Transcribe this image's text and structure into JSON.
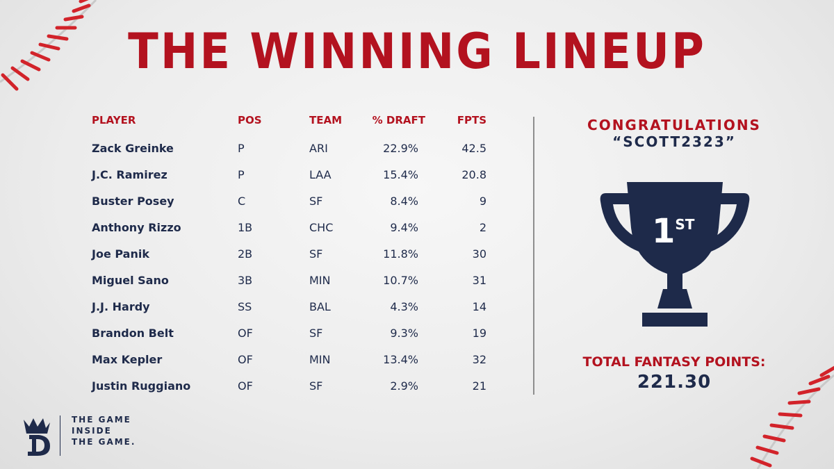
{
  "title": "THE WINNING LINEUP",
  "table": {
    "headers": {
      "player": "PLAYER",
      "pos": "POS",
      "team": "TEAM",
      "draft": "% DRAFT",
      "fpts": "FPTS"
    },
    "rows": [
      {
        "player": "Zack Greinke",
        "pos": "P",
        "team": "ARI",
        "draft": "22.9%",
        "fpts": "42.5"
      },
      {
        "player": "J.C. Ramirez",
        "pos": "P",
        "team": "LAA",
        "draft": "15.4%",
        "fpts": "20.8"
      },
      {
        "player": "Buster Posey",
        "pos": "C",
        "team": "SF",
        "draft": "8.4%",
        "fpts": "9"
      },
      {
        "player": "Anthony Rizzo",
        "pos": "1B",
        "team": "CHC",
        "draft": "9.4%",
        "fpts": "2"
      },
      {
        "player": "Joe Panik",
        "pos": "2B",
        "team": "SF",
        "draft": "11.8%",
        "fpts": "30"
      },
      {
        "player": "Miguel Sano",
        "pos": "3B",
        "team": "MIN",
        "draft": "10.7%",
        "fpts": "31"
      },
      {
        "player": "J.J. Hardy",
        "pos": "SS",
        "team": "BAL",
        "draft": "4.3%",
        "fpts": "14"
      },
      {
        "player": "Brandon Belt",
        "pos": "OF",
        "team": "SF",
        "draft": "9.3%",
        "fpts": "19"
      },
      {
        "player": "Max Kepler",
        "pos": "OF",
        "team": "MIN",
        "draft": "13.4%",
        "fpts": "32"
      },
      {
        "player": "Justin Ruggiano",
        "pos": "OF",
        "team": "SF",
        "draft": "2.9%",
        "fpts": "21"
      }
    ]
  },
  "winner": {
    "congrats": "CONGRATULATIONS",
    "username": "“SCOTT2323”",
    "place_number": "1",
    "place_suffix": "ST",
    "total_label": "TOTAL FANTASY POINTS:",
    "total_value": "221.30",
    "trophy_icon": "trophy-icon"
  },
  "brand": {
    "tagline_1": "THE GAME",
    "tagline_2": "INSIDE",
    "tagline_3": "THE GAME.",
    "logo_icon": "draftkings-crown-logo-icon"
  },
  "colors": {
    "accent_red": "#b3121f",
    "navy": "#1e2a4a",
    "stitch_red": "#d2232a"
  }
}
